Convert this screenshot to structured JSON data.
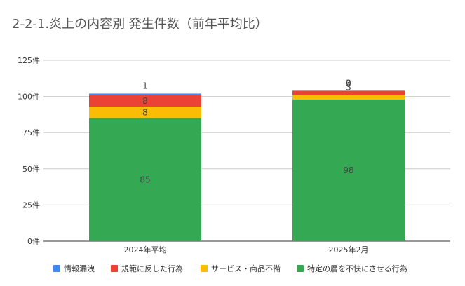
{
  "chart_data": {
    "type": "bar",
    "stacked": true,
    "title": "2-2-1.炎上の内容別 発生件数（前年平均比）",
    "categories": [
      "2024年平均",
      "2025年2月"
    ],
    "ylim": [
      0,
      125
    ],
    "yticks": [
      0,
      25,
      50,
      75,
      100,
      125
    ],
    "ytick_labels": [
      "0件",
      "25件",
      "50件",
      "75件",
      "100件",
      "125件"
    ],
    "grid": true,
    "legend_position": "bottom",
    "series": [
      {
        "name": "特定の層を不快にさせる行為",
        "color": "#34a853",
        "values": [
          85,
          98
        ]
      },
      {
        "name": "サービス・商品不備",
        "color": "#fbbc04",
        "values": [
          8,
          3
        ]
      },
      {
        "name": "規範に反した行為",
        "color": "#ea4335",
        "values": [
          8,
          3
        ]
      },
      {
        "name": "情報漏洩",
        "color": "#4285f4",
        "values": [
          1,
          0
        ]
      }
    ],
    "legend_order": [
      3,
      2,
      1,
      0
    ]
  }
}
